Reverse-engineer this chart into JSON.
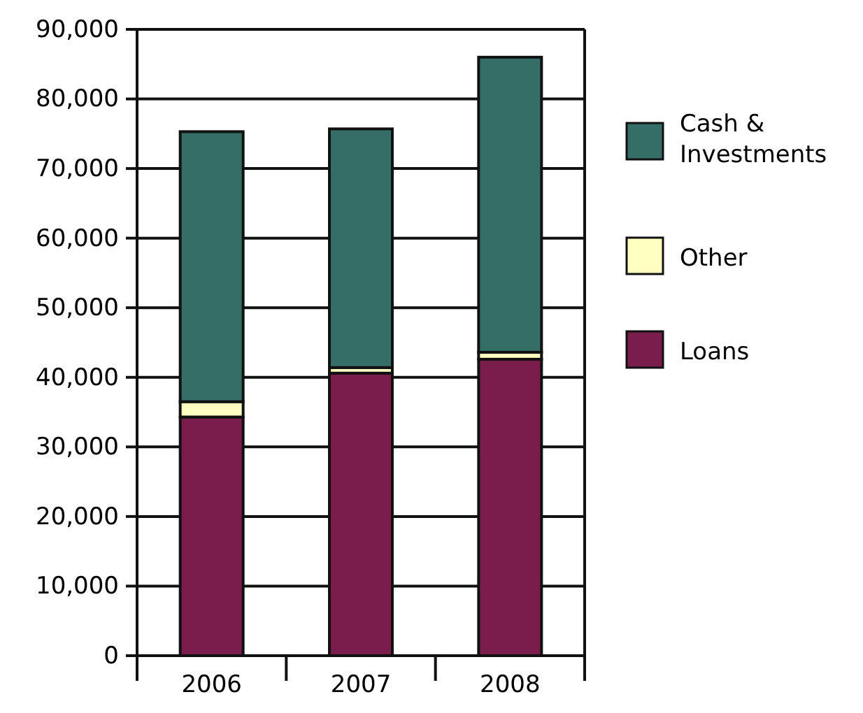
{
  "chart_data": {
    "type": "bar",
    "stacked": true,
    "categories": [
      "2006",
      "2007",
      "2008"
    ],
    "series": [
      {
        "name": "Loans",
        "color": "#7b1d4c",
        "values": [
          34300,
          40600,
          42600
        ]
      },
      {
        "name": "Other",
        "color": "#ffffc0",
        "values": [
          2200,
          800,
          1000
        ]
      },
      {
        "name": "Cash & Investments",
        "color": "#346e66",
        "values": [
          38800,
          34300,
          42400
        ]
      }
    ],
    "ylim": [
      0,
      90000
    ],
    "yticks": [
      {
        "value": 0,
        "label": "0"
      },
      {
        "value": 10000,
        "label": "10,000"
      },
      {
        "value": 20000,
        "label": "20,000"
      },
      {
        "value": 30000,
        "label": "30,000"
      },
      {
        "value": 40000,
        "label": "40,000"
      },
      {
        "value": 50000,
        "label": "50,000"
      },
      {
        "value": 60000,
        "label": "60,000"
      },
      {
        "value": 70000,
        "label": "70,000"
      },
      {
        "value": 80000,
        "label": "80,000"
      },
      {
        "value": 90000,
        "label": "90,000"
      }
    ],
    "grid": "y",
    "legend": "right"
  }
}
